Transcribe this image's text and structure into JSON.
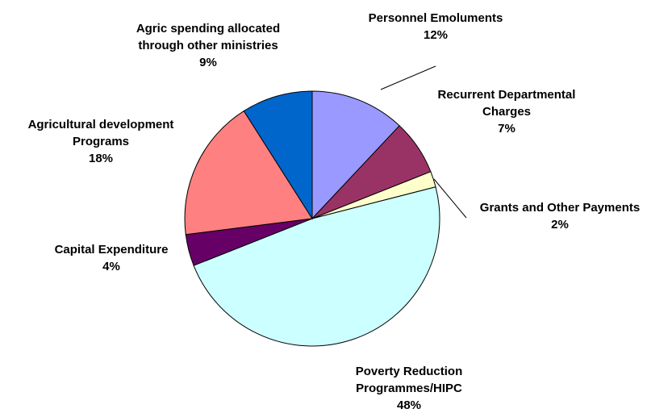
{
  "chart_data": {
    "type": "pie",
    "start_angle_deg": 0,
    "direction": "clockwise",
    "legend": "none",
    "slices": [
      {
        "label_lines": [
          "Personnel Emoluments"
        ],
        "value": 12,
        "value_label": "12%",
        "color": "#9999FF"
      },
      {
        "label_lines": [
          "Recurrent Departmental",
          "Charges"
        ],
        "value": 7,
        "value_label": "7%",
        "color": "#993366"
      },
      {
        "label_lines": [
          "Grants and Other Payments"
        ],
        "value": 2,
        "value_label": "2%",
        "color": "#FFFFCC"
      },
      {
        "label_lines": [
          "Poverty Reduction",
          "Programmes/HIPC"
        ],
        "value": 48,
        "value_label": "48%",
        "color": "#CCFFFF"
      },
      {
        "label_lines": [
          "Capital Expenditure"
        ],
        "value": 4,
        "value_label": "4%",
        "color": "#660066"
      },
      {
        "label_lines": [
          "Agricultural development",
          "Programs"
        ],
        "value": 18,
        "value_label": "18%",
        "color": "#FF8080"
      },
      {
        "label_lines": [
          "Agric spending allocated",
          "through other ministries"
        ],
        "value": 9,
        "value_label": "9%",
        "color": "#0066CC"
      }
    ]
  }
}
